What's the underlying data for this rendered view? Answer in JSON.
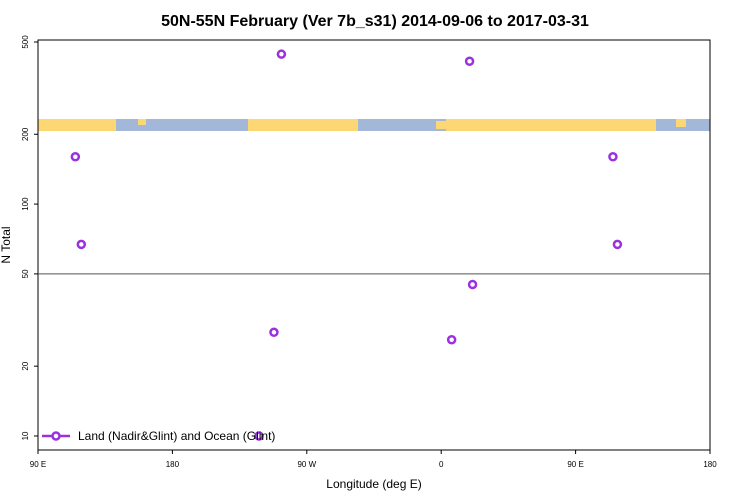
{
  "chart_data": {
    "type": "scatter",
    "title": "50N-55N February (Ver 7b_s31)   2014-09-06 to 2017-03-31",
    "x_label": "Longitude (deg E)",
    "y_label": "N Total",
    "log_y": true,
    "xlim": [
      90,
      540
    ],
    "ylim": [
      8.7,
      510
    ],
    "xticks": [
      {
        "value": 90,
        "label": "90 E"
      },
      180,
      {
        "value": 270,
        "label": "90 W"
      },
      {
        "value": 360,
        "label": "0"
      },
      {
        "value": 450,
        "label": "90 E"
      },
      {
        "value": 540,
        "label": "180"
      }
    ],
    "yticks": [
      10,
      20,
      50,
      100,
      200,
      500
    ],
    "reference_line": 50,
    "legend_position": "lower left",
    "series": [
      {
        "name": "Land (Nadir&Glint) and Ocean (Glint)",
        "color": "#9b30e0",
        "x": [
          115,
          119,
          253,
          248,
          238,
          379,
          381,
          367,
          475,
          478
        ],
        "values": [
          160,
          67,
          443,
          28,
          10,
          413,
          45,
          26,
          160,
          67
        ]
      }
    ]
  }
}
